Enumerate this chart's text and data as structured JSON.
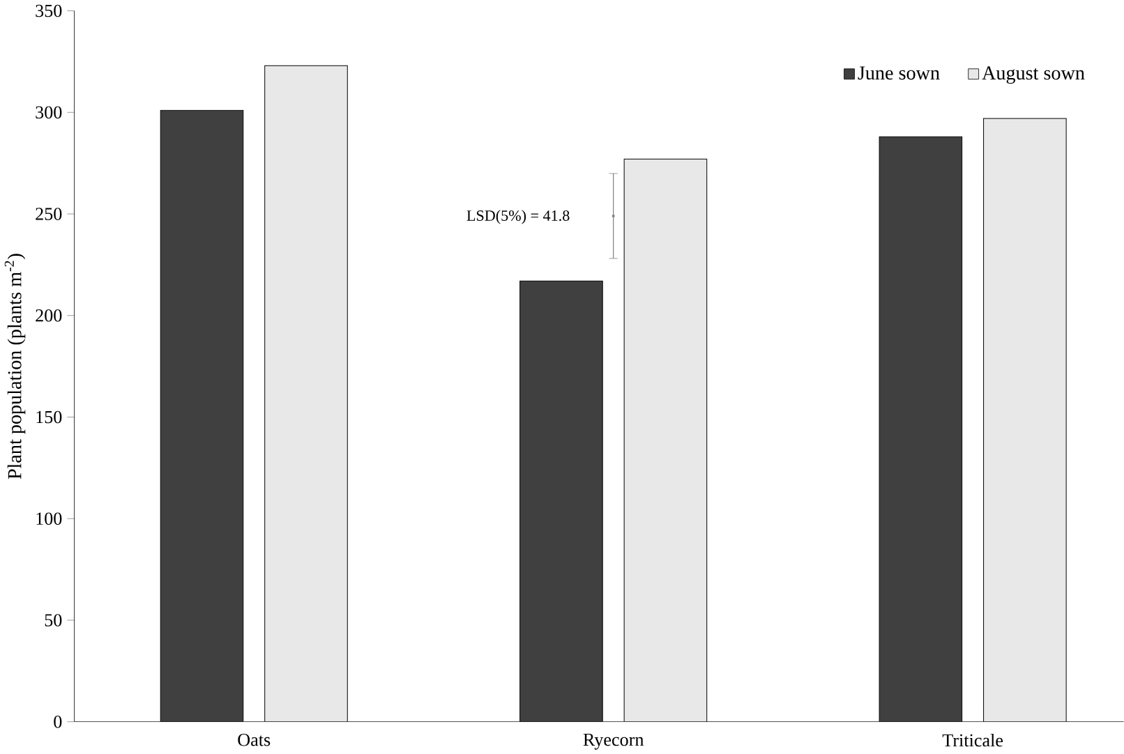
{
  "chart_data": {
    "type": "bar",
    "ylabel": "Plant population (plants m$^{-2}$)",
    "categories": [
      "Oats",
      "Ryecorn",
      "Triticale"
    ],
    "series": [
      {
        "name": "June sown",
        "color": "#404040",
        "values": [
          301,
          217,
          288
        ]
      },
      {
        "name": "August sown",
        "color": "#e8e8e8",
        "values": [
          323,
          277,
          297
        ]
      },
      {
        "type": "scatter",
        "color": "#808080",
        "values": [
          null,
          249,
          null
        ],
        "errors": [
          null,
          20.9,
          null
        ]
      }
    ],
    "ylim": [
      0,
      350
    ],
    "yticks": [
      0,
      50,
      100,
      150,
      200,
      250,
      300,
      350
    ],
    "annotations": [
      "LSD(5%) = 41.8"
    ],
    "legend": "top right",
    "grid": false
  }
}
